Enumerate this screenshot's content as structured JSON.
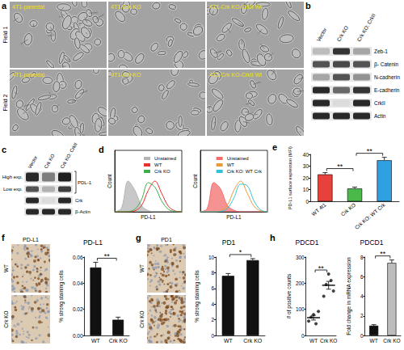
{
  "letters": [
    "a",
    "b",
    "c",
    "d",
    "e",
    "f",
    "g",
    "h"
  ],
  "micrographs": {
    "columns": [
      "4T1-parental",
      "4T1-Crk KO",
      "4T1-Crk KO-CrkII Wt"
    ],
    "rows": [
      "Field 1",
      "Field 2"
    ]
  },
  "blot_b": {
    "lanes": [
      "Vector",
      "Crk KO",
      "Crk KO: CrkII"
    ],
    "rows": [
      {
        "label": "Zeb-1",
        "bands": [
          0.2,
          0.85,
          0.3
        ]
      },
      {
        "label": "β- Catenin",
        "bands": [
          0.7,
          0.75,
          0.7
        ]
      },
      {
        "label": "N-cadherin",
        "bands": [
          0.3,
          0.7,
          0.4
        ]
      },
      {
        "label": "E-cadherin",
        "bands": [
          0.9,
          0.6,
          0.85
        ]
      },
      {
        "label": "CrkII",
        "bands": [
          0.9,
          0.05,
          0.9
        ]
      },
      {
        "label": "Actin",
        "bands": [
          0.9,
          0.9,
          0.9
        ]
      }
    ]
  },
  "blot_c": {
    "lanes": [
      "Vector",
      "Crk KO",
      "Crk KO: CrkII"
    ],
    "rows": [
      {
        "label": "High exp.",
        "group": "PDL-1",
        "bands": [
          0.9,
          0.5,
          0.95
        ]
      },
      {
        "label": "Low exp.",
        "group": "PDL-1",
        "bands": [
          0.7,
          0.25,
          0.8
        ]
      },
      {
        "label": "Crk",
        "bands": [
          0.9,
          0.05,
          0.9
        ]
      },
      {
        "label": "β-Actin",
        "bands": [
          0.9,
          0.9,
          0.9
        ]
      }
    ]
  },
  "ihc": [
    {
      "title": "PD-L1",
      "rows": [
        "WT",
        "Crk KO"
      ]
    },
    {
      "title": "PD1",
      "rows": [
        "WT",
        "Crk KO"
      ]
    }
  ],
  "chart_data": [
    {
      "type": "line",
      "x": [
        0,
        1,
        2,
        3,
        4,
        5,
        6,
        7,
        8,
        9,
        10
      ],
      "series": [
        {
          "name": "Unstained",
          "type": "area",
          "color": "#b5b5b5",
          "values": [
            0,
            12,
            100,
            70,
            20,
            4,
            0,
            0,
            0,
            0,
            0
          ]
        },
        {
          "name": "WT",
          "color": "#e8302c",
          "values": [
            0,
            0,
            0,
            3,
            20,
            70,
            100,
            60,
            18,
            3,
            0
          ]
        },
        {
          "name": "Crk KO",
          "color": "#3fae49",
          "values": [
            0,
            0,
            1,
            8,
            40,
            95,
            80,
            35,
            8,
            1,
            0
          ]
        }
      ],
      "x_label": "PD-L1",
      "y_label": "Count",
      "xlim": [
        0,
        10
      ],
      "ylim": [
        0,
        200
      ],
      "tick_labels": false,
      "legend": "top-right",
      "grid": false
    },
    {
      "type": "line",
      "x": [
        0,
        1,
        2,
        3,
        4,
        5,
        6,
        7,
        8,
        9,
        10
      ],
      "series": [
        {
          "name": "Unstained",
          "type": "area",
          "color": "#f26d6d",
          "values": [
            0,
            10,
            95,
            75,
            22,
            5,
            0,
            0,
            0,
            0,
            0
          ]
        },
        {
          "name": "WT",
          "color": "#e89b3c",
          "values": [
            0,
            0,
            0,
            3,
            20,
            70,
            100,
            60,
            18,
            3,
            0
          ]
        },
        {
          "name": "Crk KO: WT Crk",
          "color": "#35c1d6",
          "values": [
            0,
            0,
            0,
            1,
            10,
            45,
            90,
            85,
            35,
            6,
            0
          ]
        }
      ],
      "x_label": "PD-L1",
      "y_label": "Count",
      "xlim": [
        0,
        10
      ],
      "ylim": [
        0,
        200
      ],
      "tick_labels": false,
      "legend": "top-right",
      "grid": false
    },
    {
      "type": "bar",
      "categories": [
        "WT 4t1",
        "Crk KO",
        "Crk KO: WT Crk"
      ],
      "values": [
        23,
        11,
        35
      ],
      "errors": [
        1.5,
        1.2,
        2.5
      ],
      "colors": [
        "#e8403a",
        "#4bb94a",
        "#2fa0e0"
      ],
      "y_label": "PD-L1 surface expression (MFI)",
      "ylim": [
        0,
        40
      ],
      "yticks": [
        0,
        10,
        20,
        30,
        40
      ],
      "grid": false,
      "annotations": [
        {
          "text": "**",
          "between": [
            0,
            1
          ]
        },
        {
          "text": "**",
          "between": [
            1,
            2
          ]
        }
      ]
    },
    {
      "type": "bar",
      "title": "PD-L1",
      "categories": [
        "WT",
        "Crk KO"
      ],
      "values": [
        0.052,
        0.012
      ],
      "errors": [
        0.004,
        0.002
      ],
      "color": "#111111",
      "y_label": "% strong staining cells",
      "ylim": [
        0,
        0.06
      ],
      "yticks": [
        {
          "value": 0,
          "label": "0.00"
        },
        0.02,
        0.04,
        0.06
      ],
      "grid": false,
      "annotations": [
        {
          "text": "**",
          "between": [
            0,
            1
          ]
        }
      ]
    },
    {
      "type": "bar",
      "title": "PD1",
      "categories": [
        "WT",
        "Crk KO"
      ],
      "values": [
        7.6,
        9.6
      ],
      "errors": [
        0.3,
        0.2
      ],
      "color": "#111111",
      "y_label": "% strong staining cells",
      "ylim": [
        0,
        10
      ],
      "yticks": [
        0,
        2,
        4,
        6,
        8,
        10
      ],
      "grid": false,
      "annotations": [
        {
          "text": "*",
          "between": [
            0,
            1
          ]
        }
      ]
    },
    {
      "type": "scatter",
      "title": "PDCD1",
      "categories": [
        "WT",
        "Crk KO"
      ],
      "values": [
        [
          55,
          70,
          80,
          45,
          92
        ],
        [
          150,
          195,
          235,
          210,
          170
        ]
      ],
      "means": [
        68,
        192
      ],
      "errors": [
        9,
        15
      ],
      "color": "#111111",
      "y_label": "# of positive counts",
      "ylim": [
        0,
        300
      ],
      "yticks": [
        0,
        100,
        200,
        300
      ],
      "grid": false,
      "annotations": [
        {
          "text": "**",
          "between": [
            0,
            1
          ]
        }
      ]
    },
    {
      "type": "bar",
      "title": "PDCD1",
      "categories": [
        "WT",
        "Crk KO"
      ],
      "values": [
        1,
        7.4
      ],
      "errors": [
        0.1,
        0.3
      ],
      "colors": [
        "#111111",
        "#bdbdbd"
      ],
      "y_label": "Fold change in mRNA expression",
      "ylim": [
        0,
        8
      ],
      "yticks": [
        0,
        2,
        4,
        6,
        8
      ],
      "grid": false,
      "annotations": [
        {
          "text": "**",
          "between": [
            0,
            1
          ]
        }
      ]
    }
  ]
}
